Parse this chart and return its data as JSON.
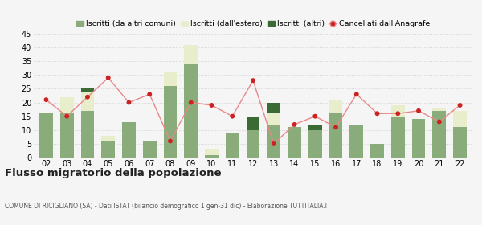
{
  "years": [
    "02",
    "03",
    "04",
    "05",
    "06",
    "07",
    "08",
    "09",
    "10",
    "11",
    "12",
    "13",
    "14",
    "15",
    "16",
    "17",
    "18",
    "19",
    "20",
    "21",
    "22"
  ],
  "iscritti_comuni": [
    16,
    16,
    17,
    6,
    13,
    6,
    26,
    34,
    1,
    9,
    10,
    12,
    11,
    10,
    16,
    12,
    5,
    15,
    14,
    17,
    11
  ],
  "iscritti_estero": [
    0,
    6,
    7,
    2,
    0,
    0,
    5,
    7,
    2,
    0,
    0,
    4,
    0,
    0,
    5,
    0,
    0,
    4,
    0,
    1,
    6
  ],
  "iscritti_altri": [
    0,
    0,
    1,
    0,
    0,
    0,
    0,
    0,
    0,
    0,
    5,
    4,
    0,
    2,
    0,
    0,
    0,
    0,
    0,
    0,
    0
  ],
  "cancellati": [
    21,
    15,
    22,
    29,
    20,
    23,
    6,
    20,
    19,
    15,
    28,
    5,
    12,
    15,
    11,
    23,
    16,
    16,
    17,
    13,
    19
  ],
  "color_comuni": "#8aac7a",
  "color_estero": "#e8eecc",
  "color_altri": "#3a6b35",
  "color_cancellati": "#cc2222",
  "color_cancellati_line": "#e88888",
  "ylim": [
    0,
    45
  ],
  "yticks": [
    0,
    5,
    10,
    15,
    20,
    25,
    30,
    35,
    40,
    45
  ],
  "title": "Flusso migratorio della popolazione",
  "subtitle": "COMUNE DI RICIGLIANO (SA) - Dati ISTAT (bilancio demografico 1 gen-31 dic) - Elaborazione TUTTITALIA.IT",
  "legend_labels": [
    "Iscritti (da altri comuni)",
    "Iscritti (dall'estero)",
    "Iscritti (altri)",
    "Cancellati dall'Anagrafe"
  ],
  "background_color": "#f5f5f5",
  "grid_color": "#cccccc"
}
